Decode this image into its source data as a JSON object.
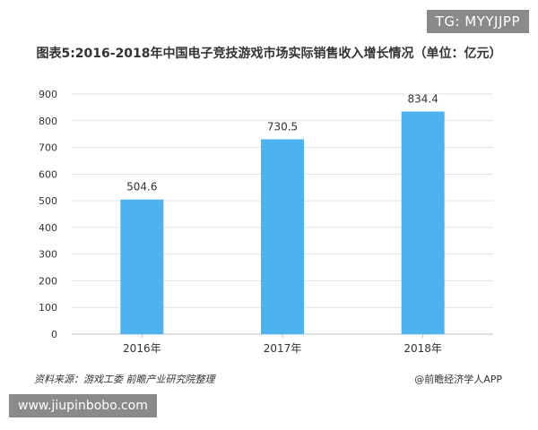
{
  "badges": {
    "top_right": "TG: MYYJJPP",
    "bottom_left": "www.jiupinbobo.com"
  },
  "chart_data": {
    "type": "bar",
    "title": "图表5:2016-2018年中国电子竞技游戏市场实际销售收入增长情况（单位：亿元）",
    "categories": [
      "2016年",
      "2017年",
      "2018年"
    ],
    "values": [
      504.6,
      730.5,
      834.4
    ],
    "value_labels": [
      "504.6",
      "730.5",
      "834.4"
    ],
    "ylim": [
      0,
      900
    ],
    "yticks": [
      0,
      100,
      200,
      300,
      400,
      500,
      600,
      700,
      800,
      900
    ],
    "grid": true,
    "bar_color": "#4db3ee"
  },
  "footer": {
    "source": "资料来源：游戏工委 前瞻产业研究院整理",
    "brand": "@前瞻经济学人APP"
  }
}
